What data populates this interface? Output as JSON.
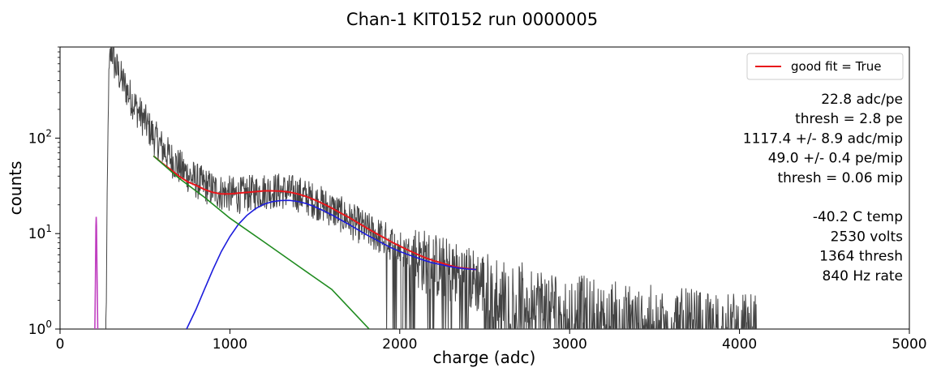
{
  "chart_data": {
    "type": "line",
    "title": "Chan-1  KIT0152  run 0000005",
    "xlabel": "charge (adc)",
    "ylabel": "counts",
    "xlim": [
      0,
      5000
    ],
    "ylim": [
      1,
      900
    ],
    "yscale": "log",
    "x_ticks": [
      {
        "value": 0,
        "label": "0"
      },
      {
        "value": 1000,
        "label": "1000"
      },
      {
        "value": 2000,
        "label": "2000"
      },
      {
        "value": 3000,
        "label": "3000"
      },
      {
        "value": 4000,
        "label": "4000"
      },
      {
        "value": 5000,
        "label": "5000"
      }
    ],
    "y_ticks": [
      {
        "value": 1,
        "base": "10",
        "exp": "0"
      },
      {
        "value": 10,
        "base": "10",
        "exp": "1"
      },
      {
        "value": 100,
        "base": "10",
        "exp": "2"
      }
    ],
    "grid": false,
    "legend": {
      "position": "top-right",
      "entries": [
        {
          "name": "good fit = True",
          "color": "#e8161b"
        }
      ]
    },
    "annotations": [
      "22.8  adc/pe",
      "thresh = 2.8 pe",
      "1117.4 +/- 8.9  adc/mip",
      "49.0 +/- 0.4  pe/mip",
      "thresh = 0.06 mip",
      "",
      "-40.2 C temp",
      "2530 volts",
      "1364 thresh",
      "840 Hz rate"
    ],
    "series": [
      {
        "kind": "histogram",
        "color": "#444444",
        "points": [
          [
            270,
            1
          ],
          [
            285,
            300
          ],
          [
            295,
            700
          ],
          [
            305,
            880
          ],
          [
            320,
            600
          ],
          [
            340,
            500
          ],
          [
            360,
            420
          ],
          [
            380,
            360
          ],
          [
            400,
            300
          ],
          [
            430,
            240
          ],
          [
            460,
            190
          ],
          [
            500,
            150
          ],
          [
            550,
            105
          ],
          [
            600,
            80
          ],
          [
            650,
            62
          ],
          [
            700,
            50
          ],
          [
            750,
            42
          ],
          [
            800,
            36
          ],
          [
            850,
            32
          ],
          [
            900,
            29
          ],
          [
            950,
            27
          ],
          [
            1000,
            26
          ],
          [
            1050,
            25
          ],
          [
            1100,
            26
          ],
          [
            1150,
            27
          ],
          [
            1200,
            28
          ],
          [
            1250,
            28
          ],
          [
            1300,
            28
          ],
          [
            1350,
            27
          ],
          [
            1400,
            26
          ],
          [
            1450,
            24
          ],
          [
            1500,
            22
          ],
          [
            1550,
            20
          ],
          [
            1600,
            18
          ],
          [
            1650,
            16
          ],
          [
            1700,
            14
          ],
          [
            1750,
            12.5
          ],
          [
            1800,
            11
          ],
          [
            1850,
            10
          ],
          [
            1900,
            9
          ],
          [
            1950,
            8
          ],
          [
            2000,
            7
          ],
          [
            2050,
            6.3
          ],
          [
            2100,
            5.7
          ],
          [
            2150,
            5.1
          ],
          [
            2200,
            4.7
          ],
          [
            2250,
            4.3
          ],
          [
            2300,
            4
          ],
          [
            2350,
            3.7
          ],
          [
            2400,
            3.4
          ],
          [
            2500,
            3
          ],
          [
            2600,
            2.6
          ],
          [
            2700,
            2.3
          ],
          [
            2800,
            2.1
          ],
          [
            2900,
            1.9
          ],
          [
            3000,
            1.75
          ],
          [
            3200,
            1.5
          ],
          [
            3400,
            1.35
          ],
          [
            3600,
            1.25
          ],
          [
            3800,
            1.15
          ],
          [
            4000,
            1.1
          ],
          [
            4100,
            1.05
          ]
        ]
      },
      {
        "kind": "fit",
        "name": "good fit = True",
        "color": "#e8161b",
        "points": [
          [
            550,
            65
          ],
          [
            600,
            55
          ],
          [
            650,
            47
          ],
          [
            700,
            40
          ],
          [
            750,
            35
          ],
          [
            800,
            32
          ],
          [
            850,
            29
          ],
          [
            900,
            27
          ],
          [
            950,
            26
          ],
          [
            1000,
            26
          ],
          [
            1050,
            26.5
          ],
          [
            1100,
            27
          ],
          [
            1150,
            27.5
          ],
          [
            1200,
            28
          ],
          [
            1250,
            28
          ],
          [
            1300,
            27.8
          ],
          [
            1350,
            27.2
          ],
          [
            1400,
            26
          ],
          [
            1450,
            24.5
          ],
          [
            1500,
            22.5
          ],
          [
            1550,
            20.5
          ],
          [
            1600,
            18.5
          ],
          [
            1650,
            16.5
          ],
          [
            1700,
            14.8
          ],
          [
            1750,
            13.1
          ],
          [
            1800,
            11.6
          ],
          [
            1850,
            10.3
          ],
          [
            1900,
            9.2
          ],
          [
            1950,
            8.2
          ],
          [
            2000,
            7.4
          ],
          [
            2050,
            6.7
          ],
          [
            2100,
            6.1
          ],
          [
            2150,
            5.6
          ],
          [
            2200,
            5.2
          ],
          [
            2250,
            4.9
          ],
          [
            2300,
            4.6
          ],
          [
            2350,
            4.4
          ],
          [
            2400,
            4.3
          ],
          [
            2450,
            4.2
          ]
        ]
      },
      {
        "kind": "component",
        "color": "#1c1cdc",
        "points": [
          [
            745,
            1
          ],
          [
            800,
            1.6
          ],
          [
            850,
            2.6
          ],
          [
            900,
            4.2
          ],
          [
            950,
            6.5
          ],
          [
            1000,
            9.3
          ],
          [
            1050,
            12.5
          ],
          [
            1100,
            15.5
          ],
          [
            1150,
            18.2
          ],
          [
            1200,
            20.3
          ],
          [
            1250,
            21.6
          ],
          [
            1300,
            22.2
          ],
          [
            1350,
            22.3
          ],
          [
            1400,
            21.7
          ],
          [
            1450,
            20.6
          ],
          [
            1500,
            19.1
          ],
          [
            1550,
            17.4
          ],
          [
            1600,
            15.7
          ],
          [
            1650,
            14
          ],
          [
            1700,
            12.5
          ],
          [
            1750,
            11.1
          ],
          [
            1800,
            9.8
          ],
          [
            1850,
            8.8
          ],
          [
            1900,
            7.9
          ],
          [
            1950,
            7.1
          ],
          [
            2000,
            6.5
          ],
          [
            2050,
            6
          ],
          [
            2100,
            5.6
          ],
          [
            2150,
            5.2
          ],
          [
            2200,
            4.9
          ],
          [
            2250,
            4.7
          ],
          [
            2300,
            4.5
          ],
          [
            2350,
            4.35
          ],
          [
            2400,
            4.25
          ],
          [
            2450,
            4.2
          ]
        ]
      },
      {
        "kind": "component",
        "color": "#1f8b1f",
        "points": [
          [
            550,
            65
          ],
          [
            700,
            38
          ],
          [
            850,
            24
          ],
          [
            1000,
            14.5
          ],
          [
            1200,
            8.2
          ],
          [
            1400,
            4.6
          ],
          [
            1600,
            2.6
          ],
          [
            1820,
            1
          ]
        ]
      },
      {
        "kind": "peak",
        "color": "#c040c0",
        "points": [
          [
            205,
            1
          ],
          [
            208,
            3
          ],
          [
            211,
            12
          ],
          [
            213,
            15
          ],
          [
            215,
            12
          ],
          [
            218,
            4
          ],
          [
            222,
            1
          ]
        ]
      }
    ]
  }
}
